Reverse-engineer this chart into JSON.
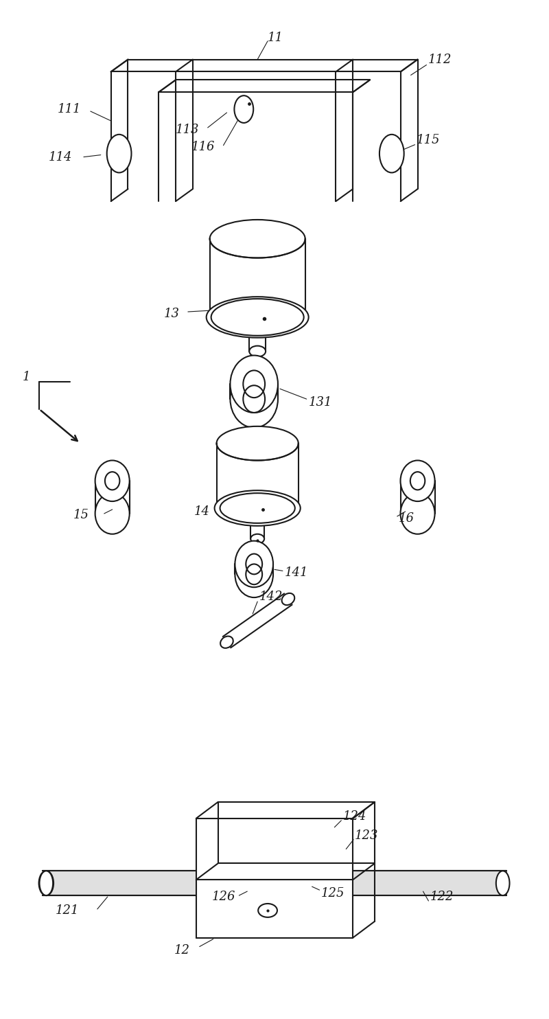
{
  "bg": "#ffffff",
  "lc": "#1a1a1a",
  "lw": 1.5,
  "fw": 8.0,
  "fh": 14.84
}
